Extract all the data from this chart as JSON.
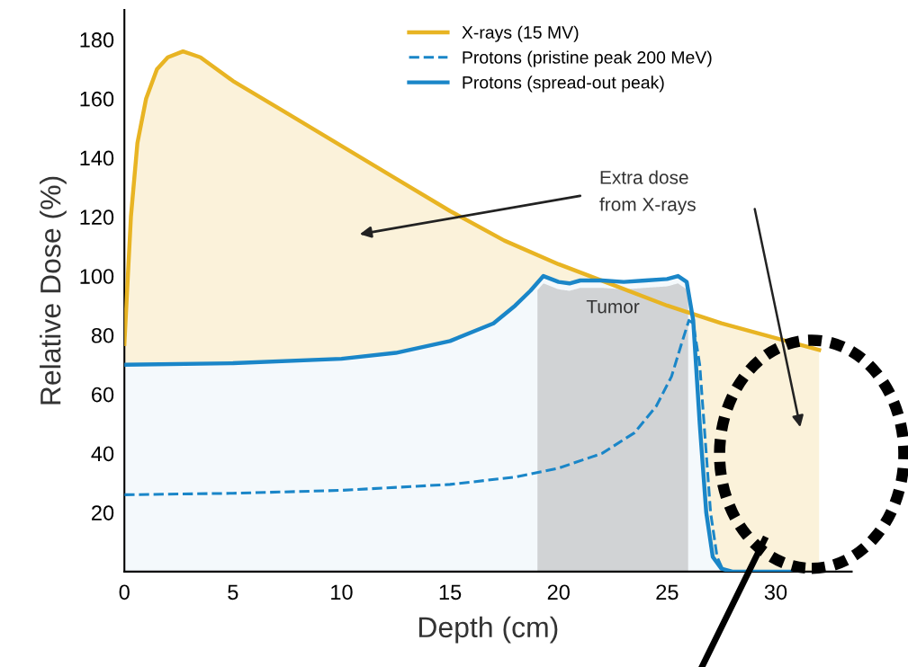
{
  "chart_data": {
    "type": "line",
    "xlabel": "Depth (cm)",
    "ylabel": "Relative Dose (%)",
    "xlim": [
      0,
      33.5
    ],
    "ylim": [
      0,
      190
    ],
    "xticks": [
      0,
      5,
      10,
      15,
      20,
      25,
      30
    ],
    "yticks": [
      20,
      40,
      60,
      80,
      100,
      120,
      140,
      160,
      180
    ],
    "grid": false,
    "legend": "top",
    "marker": "none",
    "series": [
      {
        "name": "X-rays (15 MV)",
        "type": "area",
        "color": "#e8b423",
        "line_style": "solid",
        "x": [
          0,
          0.3,
          0.6,
          1,
          1.5,
          2,
          2.7,
          3.5,
          5,
          7.5,
          10,
          12.5,
          15,
          17.5,
          20,
          22.5,
          25,
          27.5,
          30,
          32
        ],
        "values": [
          77,
          120,
          145,
          160,
          170,
          174,
          176,
          174,
          166,
          155,
          144,
          133,
          122,
          112,
          104,
          97,
          90,
          84,
          79,
          75
        ]
      },
      {
        "name": "Protons (pristine peak 200 MeV)",
        "color": "#1a86c8",
        "line_style": "dashed",
        "x": [
          0,
          5,
          10,
          15,
          18,
          20,
          22,
          23.5,
          24.5,
          25.2,
          25.7,
          26,
          26.2,
          26.5,
          26.8,
          27,
          27.3,
          27.6
        ],
        "values": [
          26,
          26.5,
          27.5,
          29.5,
          32,
          35,
          40,
          47,
          56,
          66,
          78,
          85,
          84,
          70,
          40,
          20,
          5,
          0
        ]
      },
      {
        "name": "Protons (spread-out peak)",
        "type": "area",
        "color": "#1a86c8",
        "line_style": "solid",
        "x": [
          0,
          5,
          10,
          12.5,
          15,
          17,
          18,
          18.7,
          19.3,
          20,
          20.5,
          21,
          22,
          23,
          24,
          25,
          25.5,
          25.9,
          26.2,
          26.5,
          26.8,
          27.1,
          27.5,
          28,
          30,
          30.8
        ],
        "values": [
          70,
          70.5,
          72,
          74,
          78,
          84,
          90,
          95,
          100,
          98,
          97.5,
          98.5,
          98.5,
          98,
          98.5,
          99,
          100,
          98,
          85,
          50,
          20,
          5,
          1,
          0,
          0,
          0
        ]
      }
    ],
    "bands": [
      {
        "axis": "x",
        "from": 19,
        "to": 26,
        "label": "Tumor",
        "color": "#c2c3c5"
      }
    ],
    "annotations": [
      "Extra dose\nfrom X-rays"
    ]
  }
}
